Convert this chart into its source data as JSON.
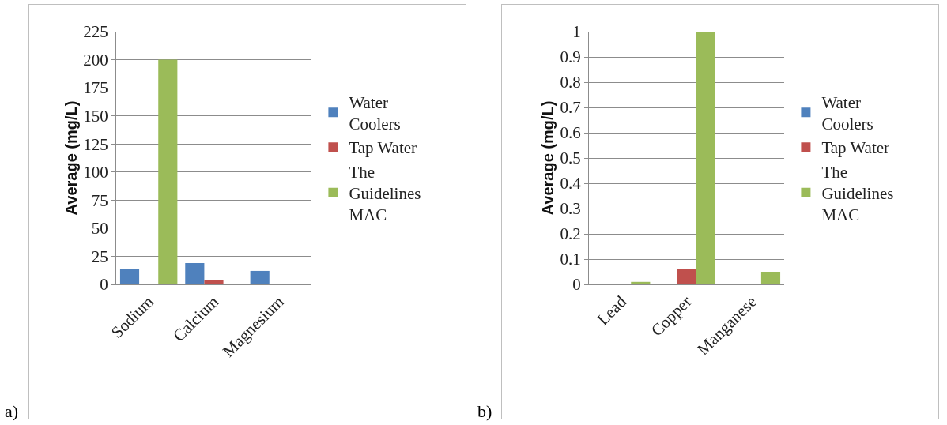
{
  "chart_data": [
    {
      "type": "bar",
      "ylabel": "Average (mg/L)",
      "categories": [
        "Sodium",
        "Calcium",
        "Magnesium"
      ],
      "series": [
        {
          "name": "Water Coolers",
          "color": "#4f81bd",
          "values": [
            14,
            19,
            12
          ]
        },
        {
          "name": "Tap Water",
          "color": "#c0504d",
          "values": [
            null,
            4,
            null
          ]
        },
        {
          "name": "The Guidelines MAC",
          "color": "#9bbb59",
          "values": [
            200,
            null,
            null
          ]
        }
      ],
      "ylim": [
        0,
        225
      ],
      "yticks": [
        0,
        25,
        50,
        75,
        100,
        125,
        150,
        175,
        200,
        225
      ],
      "grid": "y",
      "legend": "right",
      "annotations": [
        "a)"
      ]
    },
    {
      "type": "bar",
      "ylabel": "Average (mg/L)",
      "categories": [
        "Lead",
        "Copper",
        "Manganese"
      ],
      "series": [
        {
          "name": "Water Coolers",
          "color": "#4f81bd",
          "values": [
            0,
            0,
            0
          ]
        },
        {
          "name": "Tap Water",
          "color": "#c0504d",
          "values": [
            null,
            0.06,
            null
          ]
        },
        {
          "name": "The Guidelines MAC",
          "color": "#9bbb59",
          "values": [
            0.01,
            1,
            0.05
          ]
        }
      ],
      "ylim": [
        0,
        1
      ],
      "yticks": [
        0,
        0.1,
        0.2,
        0.3,
        0.4,
        0.5,
        0.6,
        0.7,
        0.8,
        0.9,
        1
      ],
      "grid": "y",
      "legend": "right",
      "annotations": [
        "b)"
      ]
    }
  ]
}
